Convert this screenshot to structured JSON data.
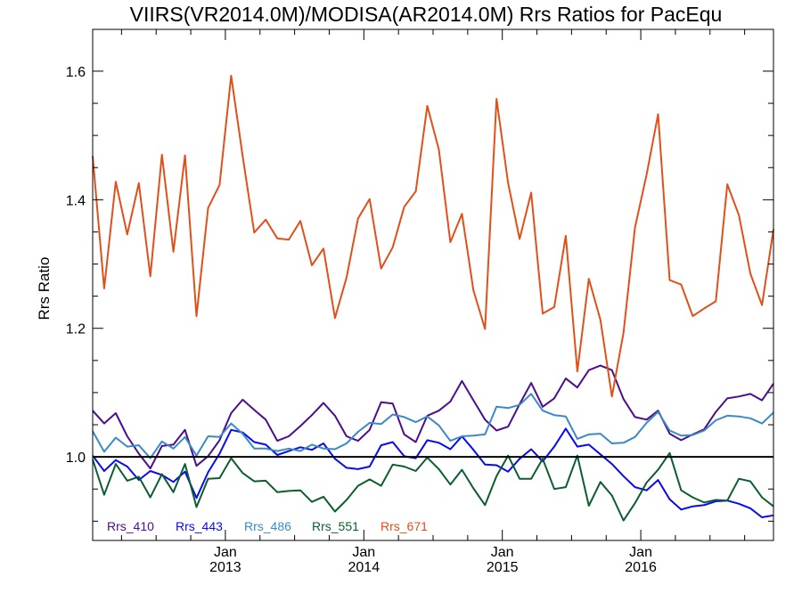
{
  "chart_data": {
    "type": "line",
    "title": "VIIRS(VR2014.0M)/MODISA(AR2014.0M)  Rrs Ratios for PacEqu",
    "xlabel": "",
    "ylabel": "Rrs Ratio",
    "x_start": "2012-01",
    "x_end": "2016-12",
    "xlim": [
      "2012-01",
      "2016-12"
    ],
    "ylim": [
      0.87,
      1.665
    ],
    "y_ticks": [
      1.0,
      1.2,
      1.4,
      1.6
    ],
    "y_tick_labels": [
      "1.0",
      "1.2",
      "1.4",
      "1.6"
    ],
    "x_ticks": [
      {
        "date": "2013-01",
        "month": "Jan",
        "year": "2013"
      },
      {
        "date": "2014-01",
        "month": "Jan",
        "year": "2014"
      },
      {
        "date": "2015-01",
        "month": "Jan",
        "year": "2015"
      },
      {
        "date": "2016-01",
        "month": "Jan",
        "year": "2016"
      }
    ],
    "reference_line": 1.0,
    "reference_color": "#000000",
    "grid": false,
    "legend_position": "bottom-left",
    "x": [
      "2012-01",
      "2012-02",
      "2012-03",
      "2012-04",
      "2012-05",
      "2012-06",
      "2012-07",
      "2012-08",
      "2012-09",
      "2012-10",
      "2012-11",
      "2012-12",
      "2013-01",
      "2013-02",
      "2013-03",
      "2013-04",
      "2013-05",
      "2013-06",
      "2013-07",
      "2013-08",
      "2013-09",
      "2013-10",
      "2013-11",
      "2013-12",
      "2014-01",
      "2014-02",
      "2014-03",
      "2014-04",
      "2014-05",
      "2014-06",
      "2014-07",
      "2014-08",
      "2014-09",
      "2014-10",
      "2014-11",
      "2014-12",
      "2015-01",
      "2015-02",
      "2015-03",
      "2015-04",
      "2015-05",
      "2015-06",
      "2015-07",
      "2015-08",
      "2015-09",
      "2015-10",
      "2015-11",
      "2015-12",
      "2016-01",
      "2016-02",
      "2016-03",
      "2016-04",
      "2016-05",
      "2016-06",
      "2016-07",
      "2016-08",
      "2016-09",
      "2016-10",
      "2016-11",
      "2016-12"
    ],
    "series": [
      {
        "name": "Rrs_410",
        "color": "#4B0E8C",
        "values": [
          1.072,
          1.052,
          1.068,
          1.032,
          1.005,
          0.982,
          1.017,
          1.019,
          1.042,
          0.986,
          1.001,
          1.026,
          1.068,
          1.089,
          1.073,
          1.058,
          1.025,
          1.032,
          1.048,
          1.065,
          1.084,
          1.064,
          1.032,
          1.025,
          1.042,
          1.085,
          1.083,
          1.035,
          1.023,
          1.064,
          1.072,
          1.086,
          1.118,
          1.088,
          1.058,
          1.041,
          1.047,
          1.082,
          1.115,
          1.078,
          1.091,
          1.122,
          1.108,
          1.135,
          1.142,
          1.135,
          1.09,
          1.062,
          1.058,
          1.072,
          1.036,
          1.026,
          1.035,
          1.043,
          1.07,
          1.091,
          1.094,
          1.098,
          1.088,
          1.114
        ]
      },
      {
        "name": "Rrs_443",
        "color": "#0A0AF0",
        "values": [
          1.002,
          0.978,
          0.995,
          0.985,
          0.964,
          0.978,
          0.972,
          0.961,
          0.977,
          0.936,
          0.976,
          1.005,
          1.042,
          1.038,
          1.023,
          1.019,
          1.003,
          1.009,
          1.015,
          1.011,
          1.021,
          0.997,
          0.983,
          0.981,
          0.985,
          1.018,
          1.023,
          1.001,
          0.998,
          1.026,
          1.022,
          1.012,
          1.032,
          1.011,
          0.988,
          0.987,
          0.977,
          0.997,
          1.012,
          0.993,
          1.016,
          1.044,
          1.016,
          1.019,
          1.004,
          0.989,
          0.97,
          0.953,
          0.948,
          0.964,
          0.934,
          0.918,
          0.923,
          0.925,
          0.931,
          0.932,
          0.927,
          0.92,
          0.906,
          0.909
        ]
      },
      {
        "name": "Rrs_486",
        "color": "#3A8AC6",
        "values": [
          1.04,
          1.008,
          1.03,
          1.016,
          1.018,
          0.998,
          1.024,
          1.013,
          1.031,
          1.002,
          1.032,
          1.031,
          1.052,
          1.036,
          1.013,
          1.013,
          1.009,
          1.013,
          1.009,
          1.019,
          1.013,
          1.012,
          1.021,
          1.039,
          1.053,
          1.051,
          1.066,
          1.062,
          1.054,
          1.063,
          1.049,
          1.025,
          1.032,
          1.033,
          1.035,
          1.078,
          1.076,
          1.081,
          1.098,
          1.072,
          1.065,
          1.063,
          1.028,
          1.035,
          1.036,
          1.021,
          1.022,
          1.031,
          1.053,
          1.07,
          1.041,
          1.033,
          1.034,
          1.041,
          1.057,
          1.064,
          1.063,
          1.06,
          1.052,
          1.069
        ]
      },
      {
        "name": "Rrs_551",
        "color": "#0B5E2E",
        "values": [
          0.996,
          0.941,
          0.989,
          0.963,
          0.969,
          0.937,
          0.973,
          0.945,
          0.989,
          0.922,
          0.966,
          0.967,
          0.998,
          0.975,
          0.962,
          0.963,
          0.945,
          0.947,
          0.948,
          0.93,
          0.938,
          0.915,
          0.933,
          0.955,
          0.965,
          0.955,
          0.988,
          0.985,
          0.978,
          0.999,
          0.981,
          0.957,
          0.98,
          0.951,
          0.925,
          0.97,
          1.002,
          0.966,
          0.966,
          0.997,
          0.95,
          0.953,
          1.002,
          0.924,
          0.961,
          0.94,
          0.901,
          0.928,
          0.96,
          0.98,
          1.006,
          0.948,
          0.937,
          0.929,
          0.933,
          0.932,
          0.966,
          0.962,
          0.937,
          0.923
        ]
      },
      {
        "name": "Rrs_671",
        "color": "#E0501A",
        "values": [
          1.468,
          1.262,
          1.428,
          1.346,
          1.426,
          1.281,
          1.47,
          1.319,
          1.469,
          1.219,
          1.387,
          1.423,
          1.593,
          1.468,
          1.349,
          1.369,
          1.34,
          1.338,
          1.367,
          1.298,
          1.324,
          1.216,
          1.279,
          1.371,
          1.401,
          1.293,
          1.326,
          1.389,
          1.413,
          1.546,
          1.478,
          1.334,
          1.378,
          1.259,
          1.199,
          1.557,
          1.426,
          1.339,
          1.411,
          1.223,
          1.233,
          1.344,
          1.133,
          1.277,
          1.213,
          1.094,
          1.193,
          1.357,
          1.439,
          1.533,
          1.275,
          1.268,
          1.219,
          1.231,
          1.242,
          1.424,
          1.376,
          1.285,
          1.236,
          1.354
        ]
      }
    ]
  }
}
